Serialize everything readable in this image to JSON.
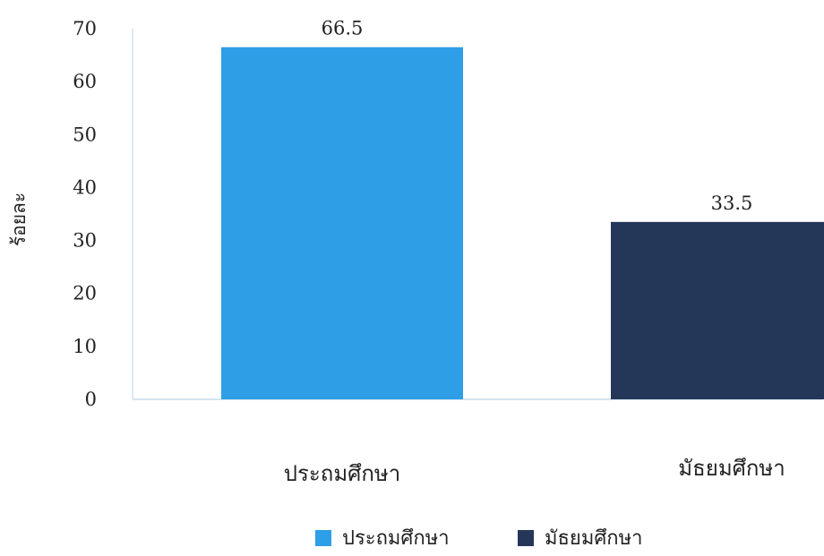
{
  "chart_data": {
    "type": "bar",
    "ylabel": "ร้อยละ",
    "ylim": [
      0,
      70
    ],
    "yticks": [
      0,
      10,
      20,
      30,
      40,
      50,
      60,
      70
    ],
    "grid": false,
    "legend_position": "bottom",
    "categories": [
      "ประถมศึกษา",
      "มัธยมศึกษา"
    ],
    "values": [
      66.5,
      33.5
    ],
    "data_labels": [
      "66.5",
      "33.5"
    ],
    "colors": [
      "#2e9ee6",
      "#253759"
    ],
    "legend": [
      "ประถมศึกษา",
      "มัธยมศึกษา"
    ]
  }
}
